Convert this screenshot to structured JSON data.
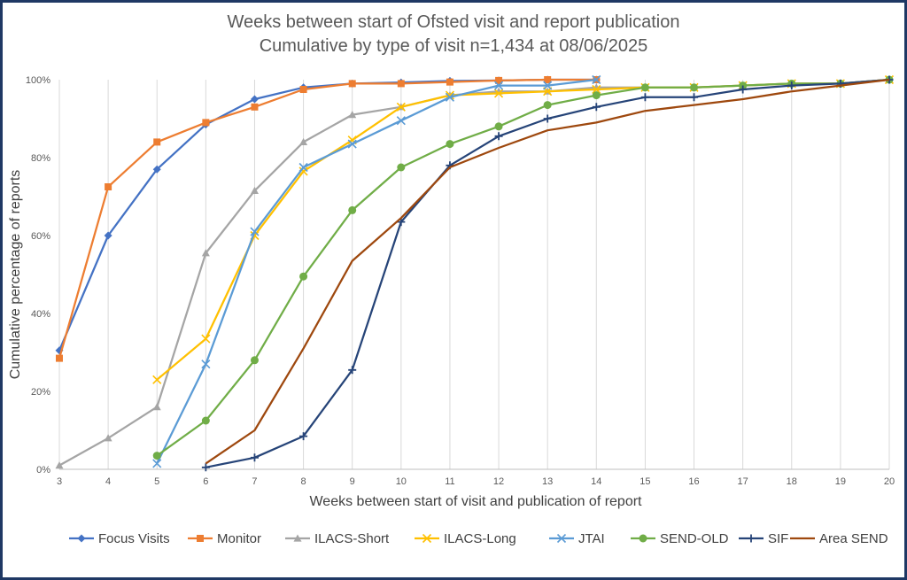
{
  "chart_data": {
    "type": "line",
    "title": "Weeks between start of Ofsted visit and report publication",
    "subtitle": "Cumulative by type of visit n=1,434 at 08/06/2025",
    "xlabel": "Weeks between start of visit and publication of report",
    "ylabel": "Cumulative percentage of reports",
    "x_ticks": [
      "3",
      "4",
      "5",
      "6",
      "7",
      "8",
      "9",
      "10",
      "11",
      "12",
      "13",
      "14",
      "15",
      "16",
      "17",
      "18",
      "19",
      "20"
    ],
    "y_ticks": [
      "0%",
      "20%",
      "40%",
      "60%",
      "80%",
      "100%"
    ],
    "xlim": [
      3,
      20
    ],
    "ylim": [
      0,
      100
    ],
    "grid": "vertical",
    "legend_position": "bottom",
    "series": [
      {
        "name": "Focus Visits",
        "color": "#4472c4",
        "marker": "diamond",
        "x": [
          3,
          4,
          5,
          6,
          7,
          8,
          9,
          10,
          11,
          12,
          13,
          14
        ],
        "y": [
          30.5,
          60,
          77,
          88.5,
          95,
          98,
          99,
          99.3,
          99.7,
          99.8,
          100,
          100
        ]
      },
      {
        "name": "Monitor",
        "color": "#ed7d31",
        "marker": "square",
        "x": [
          3,
          4,
          5,
          6,
          7,
          8,
          9,
          10,
          11,
          12,
          13,
          14
        ],
        "y": [
          28.5,
          72.5,
          84,
          89,
          93,
          97.5,
          99,
          99,
          99.4,
          99.8,
          100,
          100
        ]
      },
      {
        "name": "ILACS-Short",
        "color": "#a5a5a5",
        "marker": "triangle",
        "x": [
          3,
          4,
          5,
          6,
          7,
          8,
          9,
          10,
          11,
          12,
          13,
          14,
          15,
          16,
          17,
          18,
          19,
          20
        ],
        "y": [
          1,
          8,
          16,
          55.5,
          71.5,
          84,
          91,
          93,
          96,
          97,
          97,
          98,
          98,
          98,
          98.5,
          99,
          99,
          100
        ]
      },
      {
        "name": "ILACS-Long",
        "color": "#ffc000",
        "marker": "x",
        "x": [
          5,
          6,
          7,
          8,
          9,
          10,
          11,
          12,
          13,
          14,
          15,
          16,
          17,
          18,
          19,
          20
        ],
        "y": [
          23,
          33.5,
          60,
          76.5,
          84.5,
          93,
          96,
          96.5,
          97,
          97.5,
          98,
          98,
          98.5,
          99,
          99,
          100
        ]
      },
      {
        "name": "JTAI",
        "color": "#5b9bd5",
        "marker": "x",
        "x": [
          5,
          6,
          7,
          8,
          9,
          10,
          11,
          12,
          13,
          14
        ],
        "y": [
          1.5,
          27,
          61,
          77.5,
          83.5,
          89.5,
          95.5,
          98.5,
          98.5,
          100
        ]
      },
      {
        "name": "SEND-OLD",
        "color": "#70ad47",
        "marker": "circle",
        "x": [
          5,
          6,
          7,
          8,
          9,
          10,
          11,
          12,
          13,
          14,
          15,
          16,
          17,
          18,
          19,
          20
        ],
        "y": [
          3.5,
          12.5,
          28,
          49.5,
          66.5,
          77.5,
          83.5,
          88,
          93.5,
          96,
          98,
          98,
          98.5,
          99,
          99,
          100
        ]
      },
      {
        "name": "SIF",
        "color": "#264478",
        "marker": "plus",
        "x": [
          6,
          7,
          8,
          9,
          10,
          11,
          12,
          13,
          14,
          15,
          16,
          17,
          18,
          19,
          20
        ],
        "y": [
          0.5,
          3,
          8.5,
          25.5,
          63.5,
          78,
          85.5,
          90,
          93,
          95.5,
          95.5,
          97.5,
          98.5,
          99,
          100
        ]
      },
      {
        "name": "Area SEND",
        "color": "#9e480e",
        "marker": "none",
        "x": [
          6,
          7,
          8,
          9,
          10,
          11,
          12,
          13,
          14,
          15,
          16,
          17,
          18,
          19,
          20
        ],
        "y": [
          1.5,
          10,
          31,
          53.5,
          64.5,
          77.5,
          82.5,
          87,
          89,
          92,
          93.5,
          95,
          97,
          98.5,
          100
        ]
      }
    ]
  }
}
